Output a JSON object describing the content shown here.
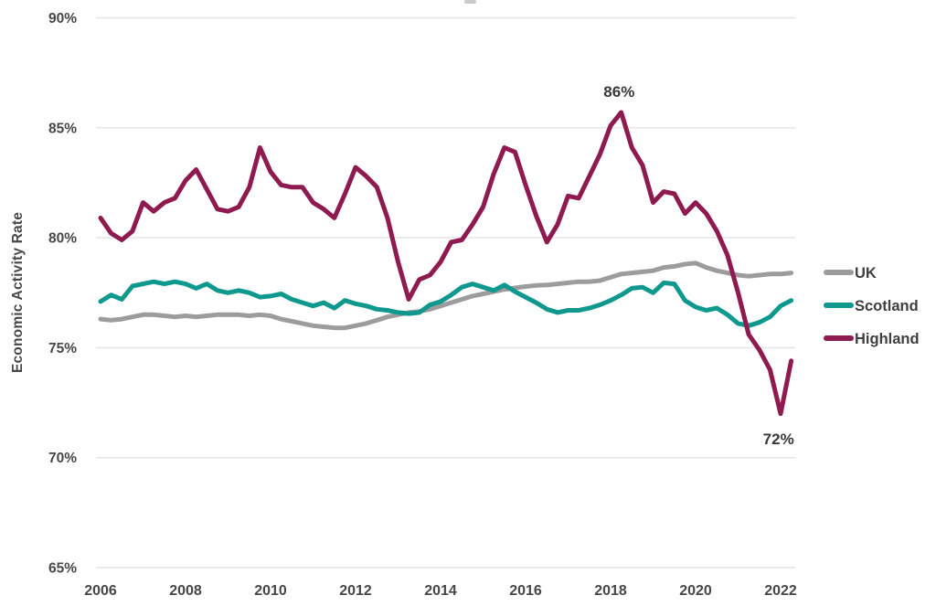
{
  "chart_data": {
    "type": "line",
    "title": "",
    "xlabel": "",
    "ylabel": "Economic Activity Rate",
    "ylim": [
      65,
      90
    ],
    "xlim": [
      2006,
      2022.25
    ],
    "grid": "horizontal",
    "legend_position": "right",
    "y_ticks": [
      90,
      85,
      80,
      75,
      70,
      65
    ],
    "y_tick_labels": [
      "90%",
      "85%",
      "80%",
      "75%",
      "70%",
      "65%"
    ],
    "x_ticks": [
      2006,
      2008,
      2010,
      2012,
      2014,
      2016,
      2018,
      2020,
      2022
    ],
    "x_tick_labels": [
      "2006",
      "2008",
      "2010",
      "2012",
      "2014",
      "2016",
      "2018",
      "2020",
      "2022"
    ],
    "x": [
      2006.0,
      2006.25,
      2006.5,
      2006.75,
      2007.0,
      2007.25,
      2007.5,
      2007.75,
      2008.0,
      2008.25,
      2008.5,
      2008.75,
      2009.0,
      2009.25,
      2009.5,
      2009.75,
      2010.0,
      2010.25,
      2010.5,
      2010.75,
      2011.0,
      2011.25,
      2011.5,
      2011.75,
      2012.0,
      2012.25,
      2012.5,
      2012.75,
      2013.0,
      2013.25,
      2013.5,
      2013.75,
      2014.0,
      2014.25,
      2014.5,
      2014.75,
      2015.0,
      2015.25,
      2015.5,
      2015.75,
      2016.0,
      2016.25,
      2016.5,
      2016.75,
      2017.0,
      2017.25,
      2017.5,
      2017.75,
      2018.0,
      2018.25,
      2018.5,
      2018.75,
      2019.0,
      2019.25,
      2019.5,
      2019.75,
      2020.0,
      2020.25,
      2020.5,
      2020.75,
      2021.0,
      2021.25,
      2021.5,
      2021.75,
      2022.0,
      2022.25
    ],
    "series": [
      {
        "name": "UK",
        "color": "#9c9c9c",
        "values": [
          76.3,
          76.25,
          76.3,
          76.4,
          76.5,
          76.5,
          76.45,
          76.4,
          76.45,
          76.4,
          76.45,
          76.5,
          76.5,
          76.5,
          76.45,
          76.5,
          76.45,
          76.3,
          76.2,
          76.1,
          76.0,
          75.95,
          75.9,
          75.9,
          76.0,
          76.1,
          76.25,
          76.4,
          76.5,
          76.6,
          76.65,
          76.75,
          76.9,
          77.05,
          77.2,
          77.35,
          77.45,
          77.55,
          77.65,
          77.72,
          77.78,
          77.83,
          77.85,
          77.9,
          77.95,
          78.0,
          78.0,
          78.05,
          78.2,
          78.35,
          78.4,
          78.45,
          78.5,
          78.65,
          78.7,
          78.8,
          78.85,
          78.65,
          78.5,
          78.4,
          78.3,
          78.25,
          78.3,
          78.35,
          78.35,
          78.4
        ]
      },
      {
        "name": "Scotland",
        "color": "#0f988e",
        "values": [
          77.1,
          77.4,
          77.2,
          77.8,
          77.9,
          78.0,
          77.9,
          78.0,
          77.9,
          77.7,
          77.9,
          77.6,
          77.5,
          77.6,
          77.5,
          77.3,
          77.35,
          77.45,
          77.2,
          77.05,
          76.9,
          77.05,
          76.8,
          77.15,
          77.0,
          76.9,
          76.75,
          76.7,
          76.6,
          76.55,
          76.6,
          76.95,
          77.1,
          77.4,
          77.75,
          77.9,
          77.75,
          77.6,
          77.85,
          77.55,
          77.3,
          77.05,
          76.75,
          76.6,
          76.7,
          76.7,
          76.8,
          76.95,
          77.15,
          77.4,
          77.7,
          77.75,
          77.5,
          77.95,
          77.9,
          77.15,
          76.85,
          76.7,
          76.8,
          76.5,
          76.1,
          76.0,
          76.15,
          76.4,
          76.9,
          77.15
        ]
      },
      {
        "name": "Highland",
        "color": "#8f1a50",
        "values": [
          80.9,
          80.2,
          79.9,
          80.3,
          81.6,
          81.2,
          81.6,
          81.8,
          82.6,
          83.1,
          82.2,
          81.3,
          81.2,
          81.4,
          82.3,
          84.1,
          83.0,
          82.4,
          82.3,
          82.3,
          81.6,
          81.3,
          80.9,
          82.0,
          83.2,
          82.8,
          82.3,
          80.9,
          78.9,
          77.2,
          78.1,
          78.3,
          78.9,
          79.8,
          79.9,
          80.6,
          81.4,
          82.9,
          84.1,
          83.9,
          82.4,
          81.0,
          79.8,
          80.6,
          81.9,
          81.8,
          82.8,
          83.8,
          85.1,
          85.7,
          84.1,
          83.3,
          81.6,
          82.1,
          82.0,
          81.1,
          81.6,
          81.1,
          80.3,
          79.2,
          77.5,
          75.6,
          74.9,
          74.0,
          72.0,
          74.4
        ]
      }
    ],
    "annotations": [
      {
        "label": "86%",
        "x": 2018.2,
        "y": 86.65
      },
      {
        "label": "72%",
        "x": 2021.95,
        "y": 70.85
      }
    ]
  }
}
